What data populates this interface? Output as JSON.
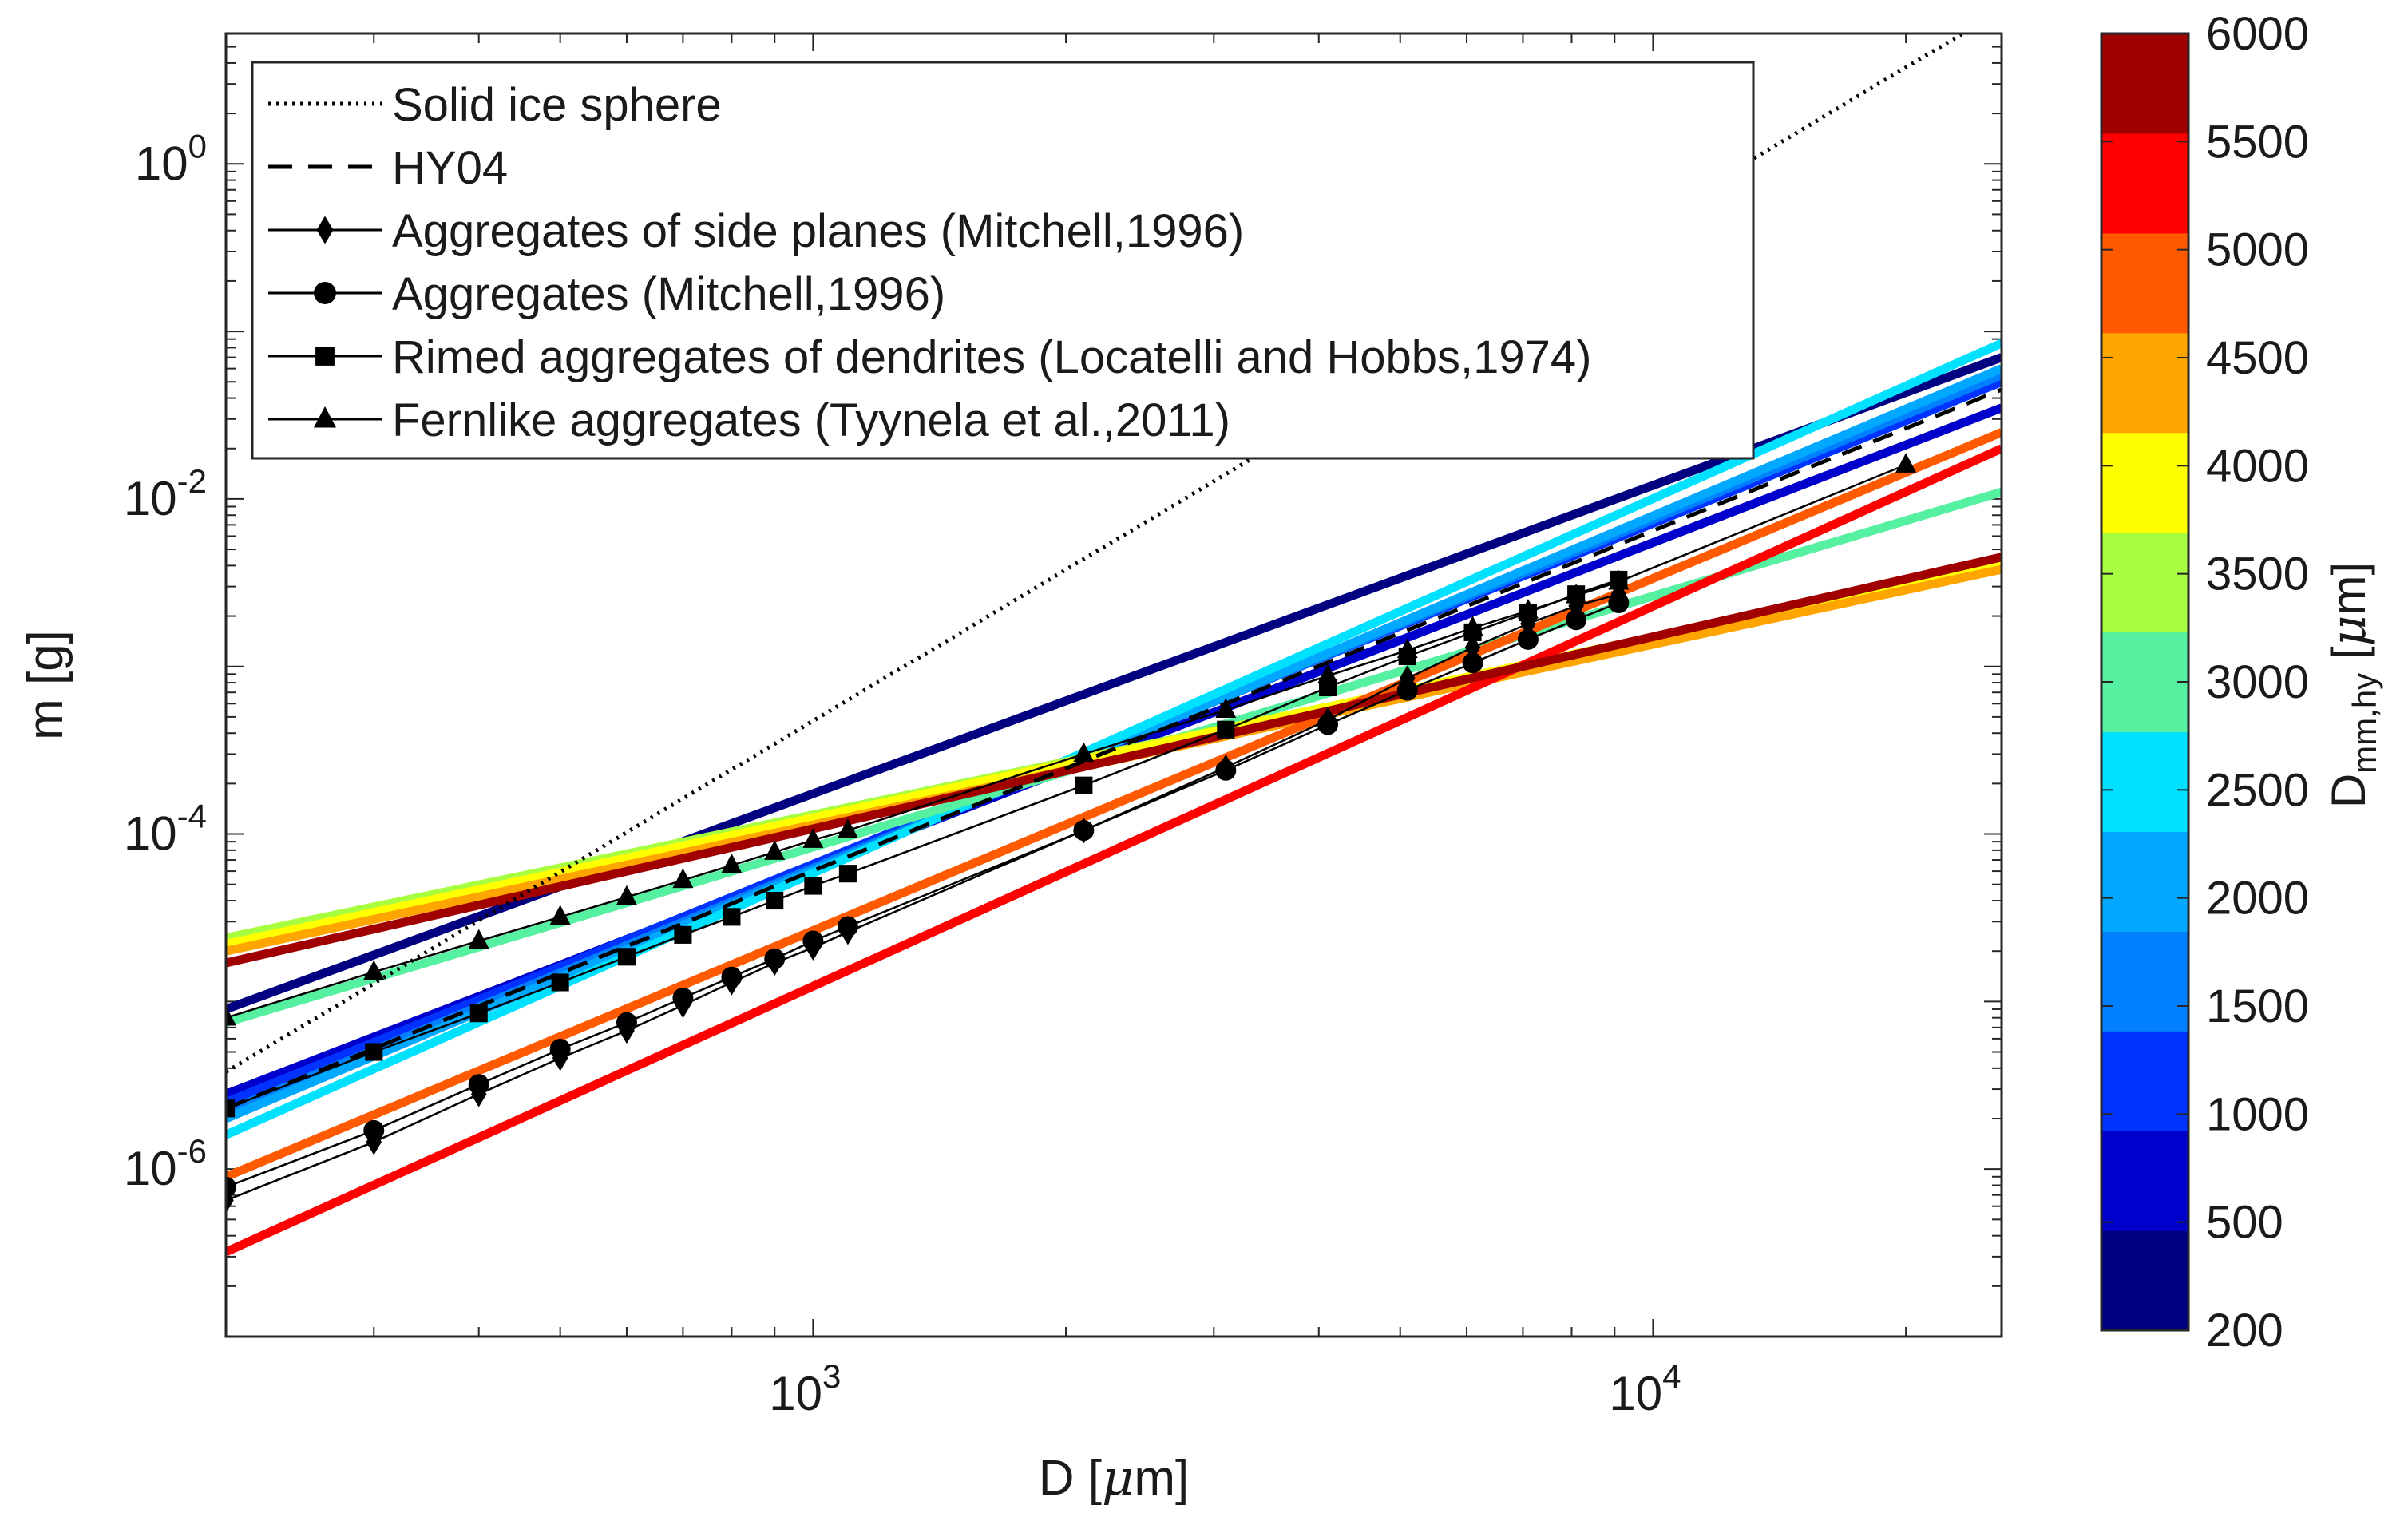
{
  "chart_data": {
    "type": "line",
    "xscale": "log",
    "yscale": "log",
    "xlim": [
      200,
      26000
    ],
    "ylim": [
      1e-07,
      6
    ],
    "xlabel": {
      "main": "D [",
      "mu": "μ",
      "tail": "m]"
    },
    "ylabel": "m [g]",
    "x_ticks": [
      {
        "value": 1000,
        "base": "10",
        "exp": "3"
      },
      {
        "value": 10000,
        "base": "10",
        "exp": "4"
      }
    ],
    "y_ticks": [
      {
        "value": 1e-06,
        "base": "10",
        "exp": "-6"
      },
      {
        "value": 0.0001,
        "base": "10",
        "exp": "-4"
      },
      {
        "value": 0.01,
        "base": "10",
        "exp": "-2"
      },
      {
        "value": 1,
        "base": "10",
        "exp": "0"
      }
    ],
    "reference_lines": [
      {
        "name": "Solid ice sphere",
        "style": "dotted",
        "color": "#000000",
        "points": [
          [
            200,
            3.8e-06
          ],
          [
            24000,
            6.5
          ]
        ]
      },
      {
        "name": "HY04",
        "style": "dashed",
        "color": "#000000",
        "points": [
          [
            200,
            2.3e-06
          ],
          [
            26000,
            0.045
          ]
        ]
      }
    ],
    "colored_series": [
      {
        "dmm": 200,
        "color": "#000080",
        "points": [
          [
            200,
            9e-06
          ],
          [
            26000,
            0.07
          ]
        ]
      },
      {
        "dmm": 500,
        "color": "#0000cc",
        "points": [
          [
            200,
            2.8e-06
          ],
          [
            26000,
            0.035
          ]
        ]
      },
      {
        "dmm": 1000,
        "color": "#0033ff",
        "points": [
          [
            200,
            2.5e-06
          ],
          [
            26000,
            0.05
          ]
        ]
      },
      {
        "dmm": 1500,
        "color": "#0080ff",
        "points": [
          [
            200,
            2.2e-06
          ],
          [
            26000,
            0.055
          ]
        ]
      },
      {
        "dmm": 2000,
        "color": "#00a8ff",
        "points": [
          [
            200,
            2e-06
          ],
          [
            26000,
            0.06
          ]
        ]
      },
      {
        "dmm": 2500,
        "color": "#00e0ff",
        "points": [
          [
            200,
            1.6e-06
          ],
          [
            26000,
            0.085
          ]
        ]
      },
      {
        "dmm": 3000,
        "color": "#55f0a0",
        "points": [
          [
            200,
            7.5e-06
          ],
          [
            26000,
            0.011
          ]
        ]
      },
      {
        "dmm": 3500,
        "color": "#a8ff40",
        "points": [
          [
            200,
            2.4e-05
          ],
          [
            26000,
            0.004
          ]
        ]
      },
      {
        "dmm": 4000,
        "color": "#ffff00",
        "points": [
          [
            200,
            2.2e-05
          ],
          [
            26000,
            0.0042
          ]
        ]
      },
      {
        "dmm": 4500,
        "color": "#ffa500",
        "points": [
          [
            200,
            2e-05
          ],
          [
            26000,
            0.0038
          ]
        ]
      },
      {
        "dmm": 5000,
        "color": "#ff5a00",
        "points": [
          [
            200,
            9e-07
          ],
          [
            26000,
            0.025
          ]
        ]
      },
      {
        "dmm": 5500,
        "color": "#ff0000",
        "points": [
          [
            200,
            3.2e-07
          ],
          [
            26000,
            0.02
          ]
        ]
      },
      {
        "dmm": 6000,
        "color": "#a00000",
        "points": [
          [
            200,
            1.7e-05
          ],
          [
            26000,
            0.0045
          ]
        ]
      }
    ],
    "observation_series": [
      {
        "name": "Aggregates of side planes (Mitchell,1996)",
        "marker": "diamond",
        "x": [
          200,
          300,
          400,
          500,
          600,
          700,
          800,
          900,
          1000,
          1100,
          2100,
          3100,
          4100,
          5100,
          6100,
          7100,
          8100,
          9100
        ],
        "y": [
          6.5e-07,
          1.45e-06,
          2.8e-06,
          4.6e-06,
          6.7e-06,
          9.5e-06,
          1.3e-05,
          1.7e-05,
          2.1e-05,
          2.6e-05,
          0.000105,
          0.00025,
          0.00048,
          0.00085,
          0.0013,
          0.0018,
          0.0023,
          0.0027
        ]
      },
      {
        "name": "Aggregates (Mitchell,1996)",
        "marker": "circle",
        "x": [
          200,
          300,
          400,
          500,
          600,
          700,
          800,
          900,
          1000,
          1100,
          2100,
          3100,
          4100,
          5100,
          6100,
          7100,
          8100,
          9100
        ],
        "y": [
          7.8e-07,
          1.7e-06,
          3.2e-06,
          5.2e-06,
          7.5e-06,
          1.05e-05,
          1.4e-05,
          1.8e-05,
          2.3e-05,
          2.8e-05,
          0.000105,
          0.00024,
          0.00045,
          0.00072,
          0.00105,
          0.00145,
          0.0019,
          0.0024
        ]
      },
      {
        "name": "Rimed aggregates of dendrites (Locatelli and Hobbs,1974)",
        "marker": "square",
        "x": [
          200,
          300,
          400,
          500,
          600,
          700,
          800,
          900,
          1000,
          1100,
          2100,
          3100,
          4100,
          5100,
          6100,
          7100,
          8100,
          9100
        ],
        "y": [
          2.3e-06,
          5e-06,
          8.5e-06,
          1.3e-05,
          1.85e-05,
          2.5e-05,
          3.2e-05,
          4e-05,
          4.9e-05,
          5.8e-05,
          0.000195,
          0.00042,
          0.00075,
          0.00115,
          0.0016,
          0.0021,
          0.0027,
          0.0033
        ]
      },
      {
        "name": "Fernlike aggregates (Tyynela et al.,2011)",
        "marker": "triangle",
        "x": [
          200,
          300,
          400,
          500,
          600,
          700,
          800,
          900,
          1000,
          1100,
          2100,
          3100,
          4100,
          5100,
          6100,
          7100,
          8100,
          9100,
          20000
        ],
        "y": [
          8e-06,
          1.5e-05,
          2.3e-05,
          3.2e-05,
          4.2e-05,
          5.3e-05,
          6.5e-05,
          7.8e-05,
          9.2e-05,
          0.000105,
          0.0003,
          0.00055,
          0.00088,
          0.00125,
          0.0017,
          0.00215,
          0.00265,
          0.0032,
          0.016
        ]
      }
    ],
    "legend": {
      "placement": "top-left",
      "entries": [
        {
          "label": "Solid ice sphere",
          "style": "dotted",
          "marker": "none"
        },
        {
          "label": "HY04",
          "style": "dashed",
          "marker": "none"
        },
        {
          "label": "Aggregates of side planes (Mitchell,1996)",
          "style": "solid",
          "marker": "diamond"
        },
        {
          "label": "Aggregates (Mitchell,1996)",
          "style": "solid",
          "marker": "circle"
        },
        {
          "label": "Rimed aggregates of dendrites (Locatelli and Hobbs,1974)",
          "style": "solid",
          "marker": "square"
        },
        {
          "label": "Fernlike aggregates (Tyynela et al.,2011)",
          "style": "solid",
          "marker": "triangle"
        }
      ]
    },
    "colorbar": {
      "label": {
        "main": "D",
        "sub": "mm,hy",
        "open": " [",
        "mu": "μ",
        "close": "m]"
      },
      "tick_labels": [
        "200",
        "500",
        "1000",
        "1500",
        "2000",
        "2500",
        "3000",
        "3500",
        "4000",
        "4500",
        "5000",
        "5500",
        "6000"
      ],
      "colors": [
        "#000080",
        "#0000cc",
        "#0033ff",
        "#0080ff",
        "#00a8ff",
        "#00e0ff",
        "#55f0a0",
        "#a8ff40",
        "#ffff00",
        "#ffa500",
        "#ff5a00",
        "#ff0000",
        "#a00000"
      ]
    }
  }
}
